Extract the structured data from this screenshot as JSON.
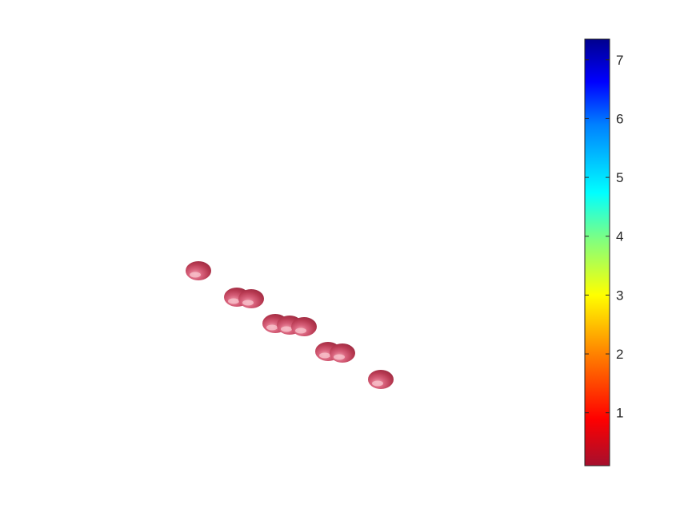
{
  "chart_data": {
    "type": "scatter",
    "title": "",
    "xlabel": "",
    "ylabel": "",
    "axes_visible": false,
    "grid": false,
    "marker": "sphere",
    "marker_color": "#b03048",
    "x": [
      -1,
      0,
      1,
      -1,
      0,
      1,
      -1,
      0,
      1
    ],
    "y": [
      -1,
      -1,
      -1,
      0,
      0,
      0,
      1,
      1,
      1
    ],
    "values": [
      0.1,
      0.1,
      0.1,
      0.1,
      0.1,
      0.1,
      0.1,
      0.1,
      0.1
    ],
    "colorbar": {
      "location": "right",
      "colormap": "jet (reversed)",
      "min": 0.1,
      "max": 7.35,
      "ticks": [
        1,
        2,
        3,
        4,
        5,
        6,
        7
      ],
      "tick_labels": [
        "1",
        "2",
        "3",
        "4",
        "5",
        "6",
        "7"
      ],
      "low_color": "#a50f2d",
      "high_color": "#00008f"
    }
  }
}
